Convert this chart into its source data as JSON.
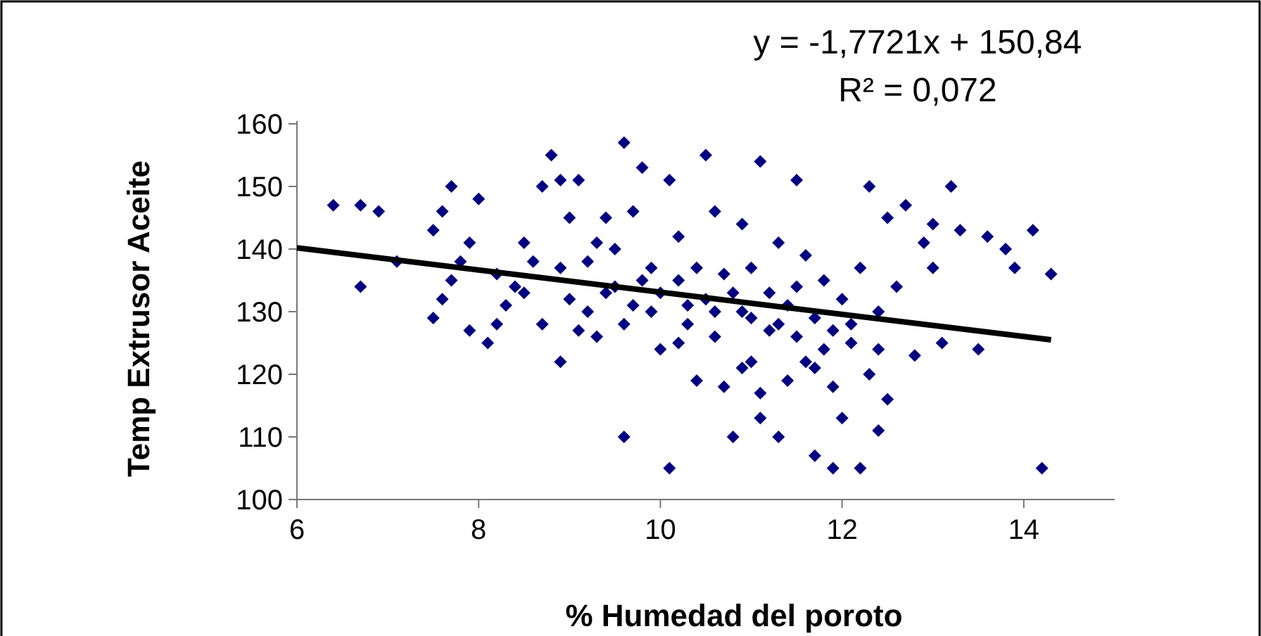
{
  "chart_data": {
    "type": "scatter",
    "xlabel": "% Humedad del poroto",
    "ylabel": "Temp Extrusor Aceite",
    "xlim": [
      6,
      15
    ],
    "xticks": [
      6,
      8,
      10,
      12,
      14
    ],
    "ylim": [
      100,
      160
    ],
    "yticks": [
      100,
      110,
      120,
      130,
      140,
      150,
      160
    ],
    "grid": false,
    "marker": "diamond",
    "annotations": [
      "y = -1,7721x + 150,84",
      "R² = 0,072"
    ],
    "series": [
      {
        "color": "#000080",
        "x": [
          6.4,
          6.7,
          6.7,
          6.9,
          7.1,
          7.5,
          7.5,
          7.6,
          7.7,
          7.6,
          7.8,
          7.9,
          8.0,
          7.9,
          8.1,
          8.2,
          8.3,
          8.5,
          8.5,
          8.7,
          8.7,
          8.8,
          8.9,
          9.0,
          8.9,
          9.1,
          9.2,
          9.3,
          9.3,
          9.4,
          9.5,
          9.5,
          9.6,
          9.6,
          9.6,
          9.7,
          9.8,
          9.9,
          9.9,
          10.0,
          10.1,
          10.1,
          10.2,
          10.2,
          10.3,
          10.4,
          10.4,
          10.5,
          10.5,
          10.6,
          10.6,
          10.7,
          10.7,
          10.8,
          10.9,
          10.9,
          11.0,
          11.0,
          11.1,
          11.1,
          11.2,
          11.2,
          11.3,
          11.3,
          11.4,
          11.4,
          11.5,
          11.5,
          11.6,
          11.6,
          11.7,
          11.7,
          11.8,
          11.8,
          11.9,
          11.9,
          12.0,
          12.0,
          12.1,
          12.2,
          12.2,
          12.3,
          12.3,
          12.4,
          12.4,
          12.5,
          12.5,
          12.6,
          12.7,
          12.8,
          12.9,
          13.0,
          13.0,
          13.1,
          13.2,
          13.3,
          13.5,
          13.6,
          13.8,
          13.9,
          14.1,
          14.2,
          14.3,
          8.4,
          8.6,
          9.0,
          9.2,
          9.4,
          9.7,
          9.8,
          10.0,
          10.3,
          10.6,
          10.8,
          11.0,
          11.3,
          11.5,
          11.9,
          12.1,
          8.2,
          7.7,
          8.9,
          10.2,
          10.9,
          11.7,
          12.4,
          9.1,
          11.1
        ],
        "values": [
          147,
          134,
          147,
          146,
          138,
          143,
          129,
          146,
          150,
          132,
          138,
          141,
          148,
          127,
          125,
          136,
          131,
          133,
          141,
          128,
          150,
          155,
          151,
          145,
          122,
          151,
          138,
          126,
          141,
          145,
          134,
          140,
          110,
          157,
          128,
          146,
          153,
          130,
          137,
          124,
          105,
          151,
          135,
          142,
          128,
          119,
          137,
          155,
          132,
          126,
          146,
          136,
          118,
          110,
          144,
          130,
          122,
          137,
          154,
          113,
          133,
          127,
          141,
          110,
          119,
          131,
          151,
          126,
          139,
          122,
          107,
          129,
          124,
          135,
          105,
          118,
          132,
          113,
          125,
          137,
          105,
          150,
          120,
          130,
          111,
          145,
          116,
          134,
          147,
          123,
          141,
          144,
          137,
          125,
          150,
          143,
          124,
          142,
          140,
          137,
          143,
          105,
          136,
          134,
          138,
          132,
          130,
          133,
          131,
          135,
          133,
          131,
          130,
          133,
          129,
          128,
          134,
          127,
          128,
          128,
          135,
          137,
          125,
          121,
          121,
          124,
          127,
          117
        ]
      },
      {
        "type": "line",
        "color": "#000000",
        "marker": "none",
        "x": [
          6,
          14.3
        ],
        "values": [
          140.2,
          125.5
        ]
      }
    ]
  }
}
